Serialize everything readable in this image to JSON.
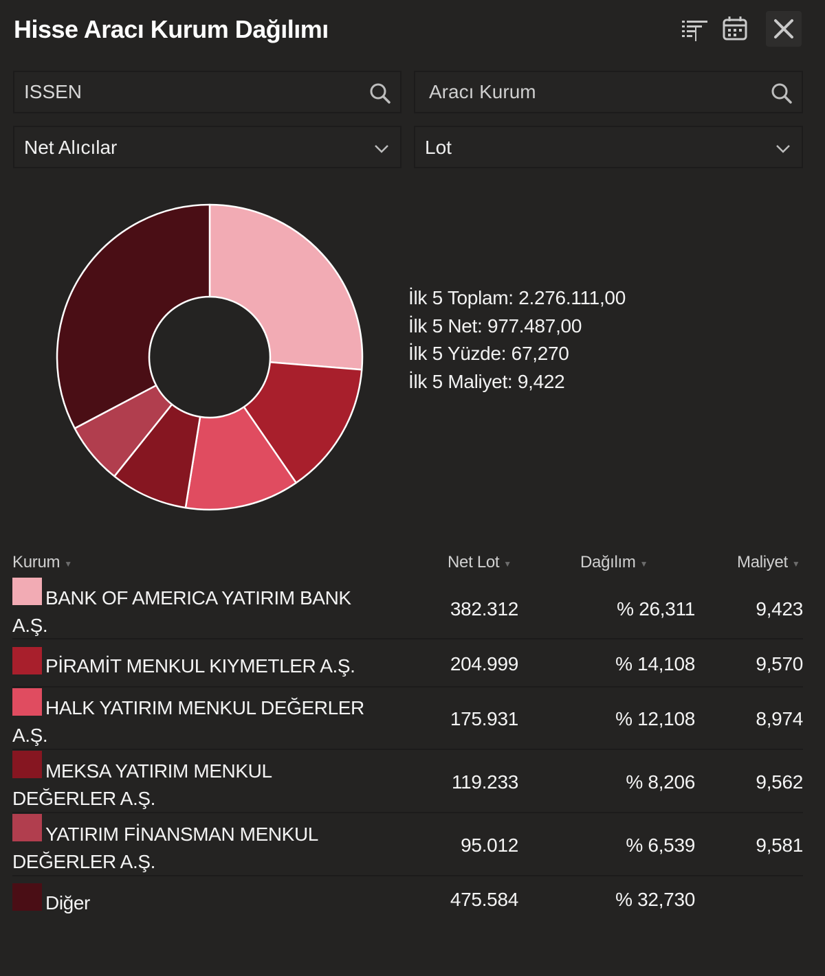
{
  "header": {
    "title": "Hisse Aracı Kurum Dağılımı",
    "icons": [
      "filter-sort-icon",
      "calendar-icon",
      "close-icon"
    ]
  },
  "filters": {
    "stock_search": {
      "value": "ISSEN",
      "placeholder": ""
    },
    "broker_search": {
      "value": "",
      "placeholder": "Aracı Kurum"
    },
    "side_select": {
      "selected": "Net Alıcılar"
    },
    "unit_select": {
      "selected": "Lot"
    }
  },
  "summary": {
    "total": "İlk 5 Toplam: 2.276.111,00",
    "net": "İlk 5 Net: 977.487,00",
    "percent": "İlk 5 Yüzde: 67,270",
    "cost": "İlk 5 Maliyet: 9,422"
  },
  "table": {
    "headers": {
      "kurum": "Kurum",
      "net_lot": "Net Lot",
      "dagilim": "Dağılım",
      "maliyet": "Maliyet"
    },
    "rows": [
      {
        "name": "BANK OF AMERICA YATIRIM BANK A.Ş.",
        "net_lot": "382.312",
        "dagilim": "% 26,311",
        "maliyet": "9,423",
        "color": "#f2abb4"
      },
      {
        "name": "PİRAMİT MENKUL KIYMETLER A.Ş.",
        "net_lot": "204.999",
        "dagilim": "% 14,108",
        "maliyet": "9,570",
        "color": "#a81f2c"
      },
      {
        "name": "HALK YATIRIM MENKUL DEĞERLER A.Ş.",
        "net_lot": "175.931",
        "dagilim": "% 12,108",
        "maliyet": "8,974",
        "color": "#e04c60"
      },
      {
        "name": "MEKSA YATIRIM MENKUL DEĞERLER A.Ş.",
        "net_lot": "119.233",
        "dagilim": "% 8,206",
        "maliyet": "9,562",
        "color": "#861621"
      },
      {
        "name": "YATIRIM FİNANSMAN MENKUL DEĞERLER A.Ş.",
        "net_lot": "95.012",
        "dagilim": "% 6,539",
        "maliyet": "9,581",
        "color": "#b13e4e"
      },
      {
        "name": "Diğer",
        "net_lot": "475.584",
        "dagilim": "% 32,730",
        "maliyet": "",
        "color": "#4a0e15"
      }
    ]
  },
  "chart_data": {
    "type": "pie",
    "variant": "donut",
    "categories": [
      "BANK OF AMERICA YATIRIM BANK A.Ş.",
      "PİRAMİT MENKUL KIYMETLER A.Ş.",
      "HALK YATIRIM MENKUL DEĞERLER A.Ş.",
      "MEKSA YATIRIM MENKUL DEĞERLER A.Ş.",
      "YATIRIM FİNANSMAN MENKUL DEĞERLER A.Ş.",
      "Diğer"
    ],
    "values": [
      382312,
      204999,
      175931,
      119233,
      95012,
      475584
    ],
    "colors": [
      "#f2abb4",
      "#a81f2c",
      "#e04c60",
      "#861621",
      "#b13e4e",
      "#4a0e15"
    ],
    "legend": "none"
  }
}
